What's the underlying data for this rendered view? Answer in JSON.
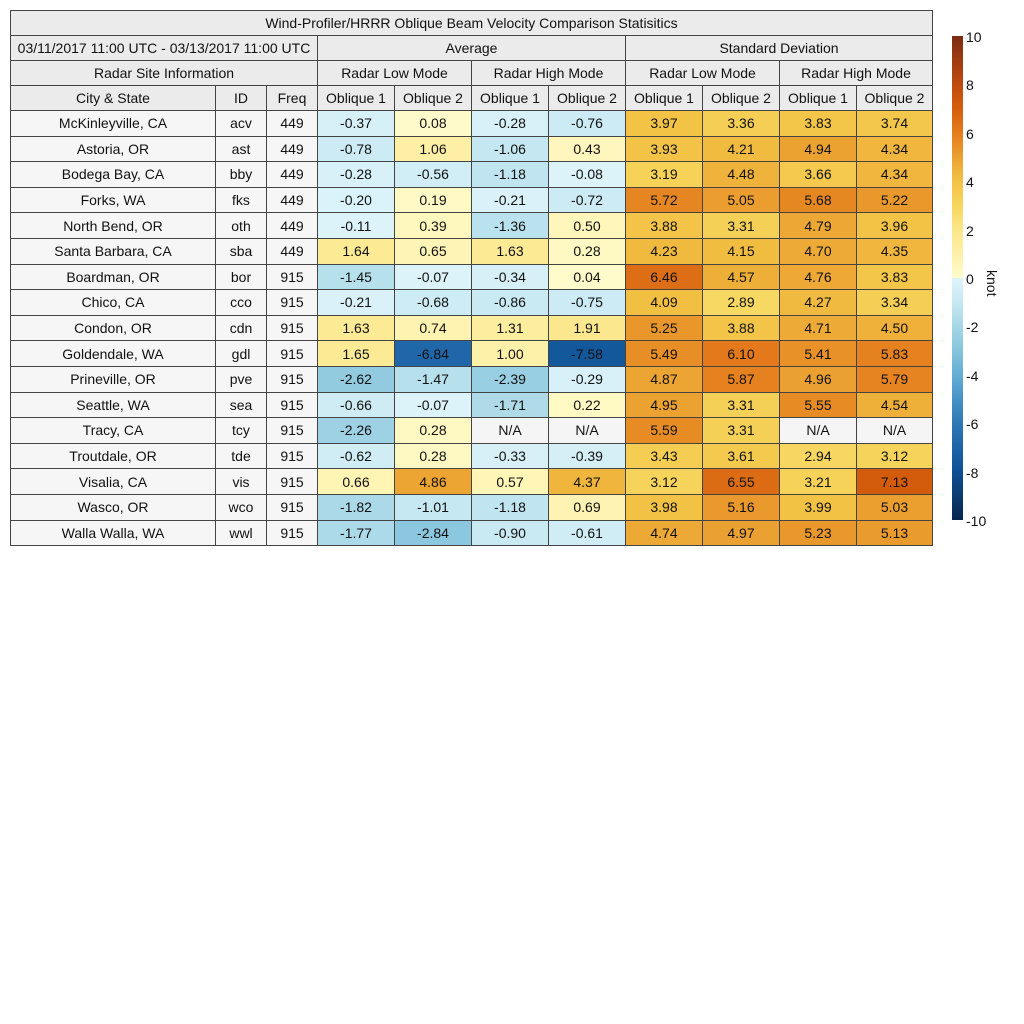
{
  "chart_data": {
    "type": "heatmap",
    "title": "Wind-Profiler/HRRR Oblique Beam Velocity Comparison Statisitics",
    "date_range": "03/11/2017 11:00 UTC - 03/13/2017 11:00 UTC",
    "groups": [
      "Average",
      "Standard Deviation"
    ],
    "site_info_label": "Radar Site Information",
    "modes": [
      "Radar Low Mode",
      "Radar High Mode",
      "Radar Low Mode",
      "Radar High Mode"
    ],
    "site_columns": [
      "City & State",
      "ID",
      "Freq"
    ],
    "value_columns": [
      "Oblique 1",
      "Oblique 2",
      "Oblique 1",
      "Oblique 2",
      "Oblique 1",
      "Oblique 2",
      "Oblique 1",
      "Oblique 2"
    ],
    "rows": [
      {
        "city": "McKinleyville, CA",
        "id": "acv",
        "freq": "449",
        "values": [
          "-0.37",
          "0.08",
          "-0.28",
          "-0.76",
          "3.97",
          "3.36",
          "3.83",
          "3.74"
        ]
      },
      {
        "city": "Astoria, OR",
        "id": "ast",
        "freq": "449",
        "values": [
          "-0.78",
          "1.06",
          "-1.06",
          "0.43",
          "3.93",
          "4.21",
          "4.94",
          "4.34"
        ]
      },
      {
        "city": "Bodega Bay, CA",
        "id": "bby",
        "freq": "449",
        "values": [
          "-0.28",
          "-0.56",
          "-1.18",
          "-0.08",
          "3.19",
          "4.48",
          "3.66",
          "4.34"
        ]
      },
      {
        "city": "Forks, WA",
        "id": "fks",
        "freq": "449",
        "values": [
          "-0.20",
          "0.19",
          "-0.21",
          "-0.72",
          "5.72",
          "5.05",
          "5.68",
          "5.22"
        ]
      },
      {
        "city": "North Bend, OR",
        "id": "oth",
        "freq": "449",
        "values": [
          "-0.11",
          "0.39",
          "-1.36",
          "0.50",
          "3.88",
          "3.31",
          "4.79",
          "3.96"
        ]
      },
      {
        "city": "Santa Barbara, CA",
        "id": "sba",
        "freq": "449",
        "values": [
          "1.64",
          "0.65",
          "1.63",
          "0.28",
          "4.23",
          "4.15",
          "4.70",
          "4.35"
        ]
      },
      {
        "city": "Boardman, OR",
        "id": "bor",
        "freq": "915",
        "values": [
          "-1.45",
          "-0.07",
          "-0.34",
          "0.04",
          "6.46",
          "4.57",
          "4.76",
          "3.83"
        ]
      },
      {
        "city": "Chico, CA",
        "id": "cco",
        "freq": "915",
        "values": [
          "-0.21",
          "-0.68",
          "-0.86",
          "-0.75",
          "4.09",
          "2.89",
          "4.27",
          "3.34"
        ]
      },
      {
        "city": "Condon, OR",
        "id": "cdn",
        "freq": "915",
        "values": [
          "1.63",
          "0.74",
          "1.31",
          "1.91",
          "5.25",
          "3.88",
          "4.71",
          "4.50"
        ]
      },
      {
        "city": "Goldendale, WA",
        "id": "gdl",
        "freq": "915",
        "values": [
          "1.65",
          "-6.84",
          "1.00",
          "-7.58",
          "5.49",
          "6.10",
          "5.41",
          "5.83"
        ]
      },
      {
        "city": "Prineville, OR",
        "id": "pve",
        "freq": "915",
        "values": [
          "-2.62",
          "-1.47",
          "-2.39",
          "-0.29",
          "4.87",
          "5.87",
          "4.96",
          "5.79"
        ]
      },
      {
        "city": "Seattle, WA",
        "id": "sea",
        "freq": "915",
        "values": [
          "-0.66",
          "-0.07",
          "-1.71",
          "0.22",
          "4.95",
          "3.31",
          "5.55",
          "4.54"
        ]
      },
      {
        "city": "Tracy, CA",
        "id": "tcy",
        "freq": "915",
        "values": [
          "-2.26",
          "0.28",
          "N/A",
          "N/A",
          "5.59",
          "3.31",
          "N/A",
          "N/A"
        ]
      },
      {
        "city": "Troutdale, OR",
        "id": "tde",
        "freq": "915",
        "values": [
          "-0.62",
          "0.28",
          "-0.33",
          "-0.39",
          "3.43",
          "3.61",
          "2.94",
          "3.12"
        ]
      },
      {
        "city": "Visalia, CA",
        "id": "vis",
        "freq": "915",
        "values": [
          "0.66",
          "4.86",
          "0.57",
          "4.37",
          "3.12",
          "6.55",
          "3.21",
          "7.13"
        ]
      },
      {
        "city": "Wasco, OR",
        "id": "wco",
        "freq": "915",
        "values": [
          "-1.82",
          "-1.01",
          "-1.18",
          "0.69",
          "3.98",
          "5.16",
          "3.99",
          "5.03"
        ]
      },
      {
        "city": "Walla Walla, WA",
        "id": "wwl",
        "freq": "915",
        "values": [
          "-1.77",
          "-2.84",
          "-0.90",
          "-0.61",
          "4.74",
          "4.97",
          "5.23",
          "5.13"
        ]
      }
    ],
    "colorbar": {
      "label": "knot",
      "range": [
        -10,
        10
      ],
      "ticks": [
        "10",
        "8",
        "6",
        "4",
        "2",
        "0",
        "-2",
        "-4",
        "-6",
        "-8",
        "-10"
      ],
      "colors": {
        "10": "#7b2b14",
        "8": "#c04a0e",
        "7": "#d55e0c",
        "6": "#e47c1c",
        "5": "#eba030",
        "4": "#f2c244",
        "3": "#f7d65e",
        "2": "#fbe68a",
        "1": "#fdf0a8",
        "0": "#fffbcc",
        "-0": "#dff4fb",
        "-1": "#c6e8f2",
        "-2": "#a5d6e6",
        "-3": "#86c4dc",
        "-4": "#64aed4",
        "-5": "#4692c6",
        "-6": "#2e78b4",
        "-7": "#1d64a8",
        "-8": "#0d4f94",
        "-10": "#08264d"
      },
      "na_color": "#f5f5f5"
    }
  }
}
